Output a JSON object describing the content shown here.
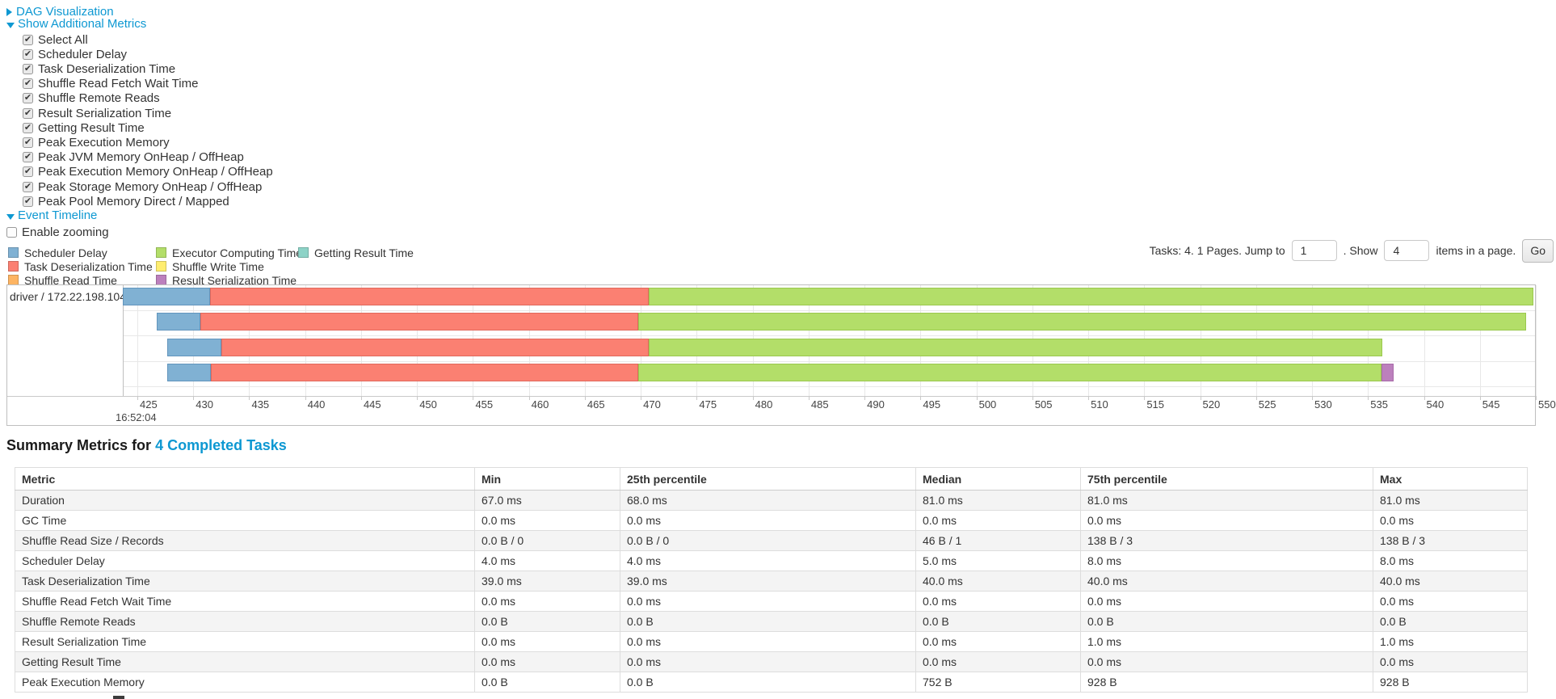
{
  "accent": {
    "link_color": "#0d98d2"
  },
  "controls": {
    "dag_link": "DAG Visualization",
    "metrics_link": "Show Additional Metrics",
    "metrics_checkboxes": [
      {
        "label": "Select All",
        "checked": true
      },
      {
        "label": "Scheduler Delay",
        "checked": true
      },
      {
        "label": "Task Deserialization Time",
        "checked": true
      },
      {
        "label": "Shuffle Read Fetch Wait Time",
        "checked": true
      },
      {
        "label": "Shuffle Remote Reads",
        "checked": true
      },
      {
        "label": "Result Serialization Time",
        "checked": true
      },
      {
        "label": "Getting Result Time",
        "checked": true
      },
      {
        "label": "Peak Execution Memory",
        "checked": true
      },
      {
        "label": "Peak JVM Memory OnHeap / OffHeap",
        "checked": true
      },
      {
        "label": "Peak Execution Memory OnHeap / OffHeap",
        "checked": true
      },
      {
        "label": "Peak Storage Memory OnHeap / OffHeap",
        "checked": true
      },
      {
        "label": "Peak Pool Memory Direct / Mapped",
        "checked": true
      }
    ],
    "timeline_link": "Event Timeline",
    "enable_zooming": {
      "label": "Enable zooming",
      "checked": false
    }
  },
  "pagination": {
    "prefix": "Tasks: 4. 1 Pages. Jump to",
    "jump_value": "1",
    "middle": ". Show",
    "show_value": "4",
    "suffix": "items in a page.",
    "go_label": "Go"
  },
  "legend": {
    "columns": [
      [
        {
          "label": "Scheduler Delay",
          "color": "#80B1D3"
        },
        {
          "label": "Task Deserialization Time",
          "color": "#FB8072"
        },
        {
          "label": "Shuffle Read Time",
          "color": "#FDB462"
        }
      ],
      [
        {
          "label": "Executor Computing Time",
          "color": "#B3DE69"
        },
        {
          "label": "Shuffle Write Time",
          "color": "#FFED6F"
        },
        {
          "label": "Result Serialization Time",
          "color": "#BC80BD"
        }
      ],
      [
        {
          "label": "Getting Result Time",
          "color": "#8DD3C7"
        }
      ]
    ]
  },
  "chart_data": {
    "type": "gantt-timeline",
    "title": "Event Timeline",
    "row_label": "driver / 172.22.198.104",
    "x_axis": {
      "tick_start": 425,
      "tick_end": 550,
      "tick_step": 5,
      "unit": "ms within second",
      "base_time_label": "16:52:04"
    },
    "segment_colors": {
      "scheduler-delay": "#80B1D3",
      "task-deserialization": "#FB8072",
      "executor-computing": "#B3DE69",
      "result-serialization": "#BC80BD",
      "shuffle-read": "#FDB462",
      "shuffle-write": "#FFED6F",
      "getting-result": "#8DD3C7"
    },
    "tasks": [
      {
        "segments": [
          {
            "kind": "scheduler-delay",
            "from": 423.7,
            "to": 431.5
          },
          {
            "kind": "task-deserialization",
            "from": 431.5,
            "to": 470.7
          },
          {
            "kind": "executor-computing",
            "from": 470.7,
            "to": 549.8
          }
        ]
      },
      {
        "segments": [
          {
            "kind": "scheduler-delay",
            "from": 426.7,
            "to": 430.6
          },
          {
            "kind": "task-deserialization",
            "from": 430.6,
            "to": 469.8
          },
          {
            "kind": "executor-computing",
            "from": 469.8,
            "to": 549.1
          }
        ]
      },
      {
        "segments": [
          {
            "kind": "scheduler-delay",
            "from": 427.7,
            "to": 432.5
          },
          {
            "kind": "task-deserialization",
            "from": 432.5,
            "to": 470.7
          },
          {
            "kind": "executor-computing",
            "from": 470.7,
            "to": 536.3
          }
        ]
      },
      {
        "segments": [
          {
            "kind": "scheduler-delay",
            "from": 427.7,
            "to": 431.6
          },
          {
            "kind": "task-deserialization",
            "from": 431.6,
            "to": 469.8
          },
          {
            "kind": "executor-computing",
            "from": 469.8,
            "to": 536.2
          },
          {
            "kind": "result-serialization",
            "from": 536.2,
            "to": 537.3
          }
        ]
      }
    ]
  },
  "summary": {
    "heading_prefix": "Summary Metrics for ",
    "heading_link": "4 Completed Tasks",
    "table": {
      "columns": [
        "Metric",
        "Min",
        "25th percentile",
        "Median",
        "75th percentile",
        "Max"
      ],
      "rows": [
        [
          "Duration",
          "67.0 ms",
          "68.0 ms",
          "81.0 ms",
          "81.0 ms",
          "81.0 ms"
        ],
        [
          "GC Time",
          "0.0 ms",
          "0.0 ms",
          "0.0 ms",
          "0.0 ms",
          "0.0 ms"
        ],
        [
          "Shuffle Read Size / Records",
          "0.0 B / 0",
          "0.0 B / 0",
          "46 B / 1",
          "138 B / 3",
          "138 B / 3"
        ],
        [
          "Scheduler Delay",
          "4.0 ms",
          "4.0 ms",
          "5.0 ms",
          "8.0 ms",
          "8.0 ms"
        ],
        [
          "Task Deserialization Time",
          "39.0 ms",
          "39.0 ms",
          "40.0 ms",
          "40.0 ms",
          "40.0 ms"
        ],
        [
          "Shuffle Read Fetch Wait Time",
          "0.0 ms",
          "0.0 ms",
          "0.0 ms",
          "0.0 ms",
          "0.0 ms"
        ],
        [
          "Shuffle Remote Reads",
          "0.0 B",
          "0.0 B",
          "0.0 B",
          "0.0 B",
          "0.0 B"
        ],
        [
          "Result Serialization Time",
          "0.0 ms",
          "0.0 ms",
          "0.0 ms",
          "1.0 ms",
          "1.0 ms"
        ],
        [
          "Getting Result Time",
          "0.0 ms",
          "0.0 ms",
          "0.0 ms",
          "0.0 ms",
          "0.0 ms"
        ],
        [
          "Peak Execution Memory",
          "0.0 B",
          "0.0 B",
          "752 B",
          "928 B",
          "928 B"
        ]
      ]
    }
  }
}
